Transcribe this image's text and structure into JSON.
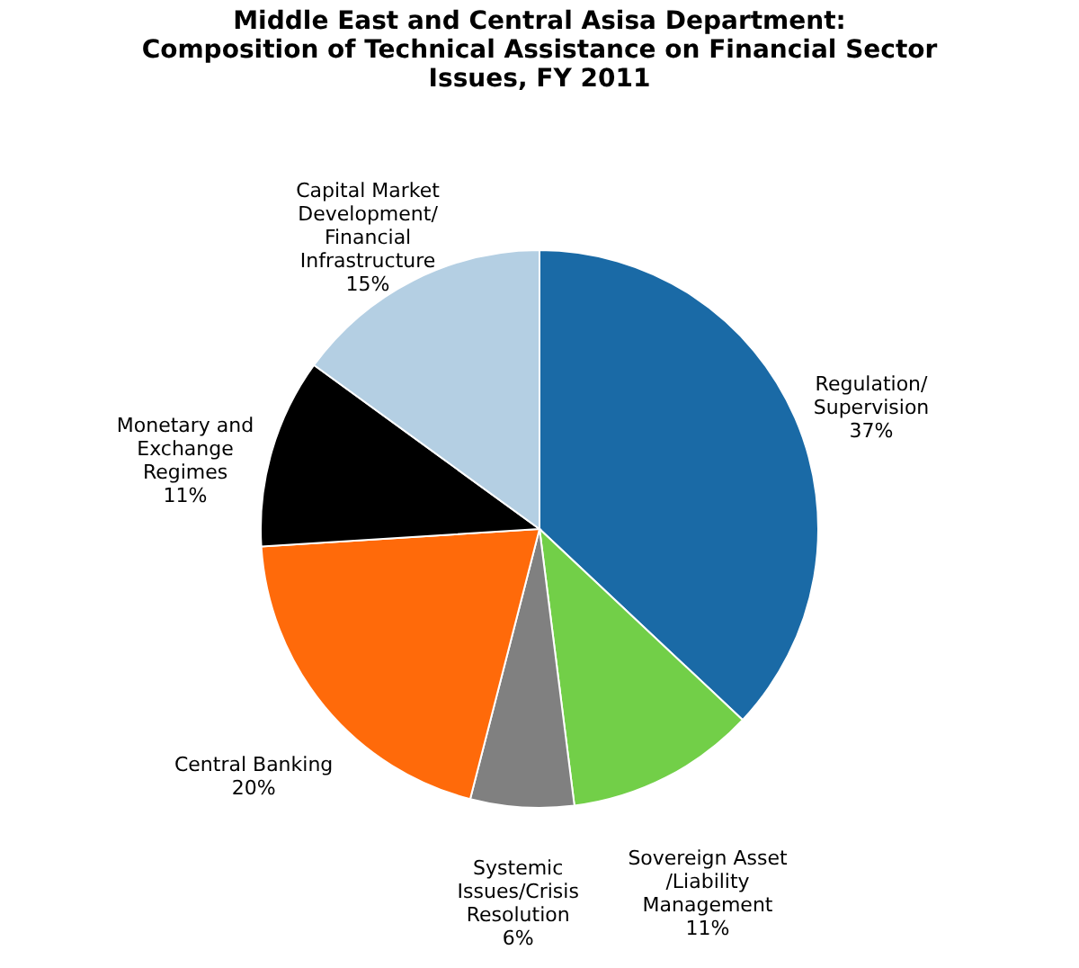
{
  "chart_data": {
    "type": "pie",
    "title": [
      "Middle East and Central Asisa Department:",
      "Composition of Technical Assistance on Financial Sector",
      "Issues, FY 2011"
    ],
    "categories": [
      "Regulation/\nSupervision",
      "Sovereign Asset\n/Liability\nManagement",
      "Systemic\nIssues/Crisis\nResolution",
      "Central Banking",
      "Monetary and\nExchange\nRegimes",
      "Capital Market\nDevelopment/\nFinancial\nInfrastructure"
    ],
    "values": [
      37,
      11,
      6,
      20,
      11,
      15
    ],
    "value_labels": [
      "37%",
      "11%",
      "6%",
      "20%",
      "11%",
      "15%"
    ],
    "colors": [
      "#1a6aa6",
      "#72cf48",
      "#808080",
      "#ff6a0a",
      "#000000",
      "#b4cfe3"
    ],
    "legend": false
  }
}
